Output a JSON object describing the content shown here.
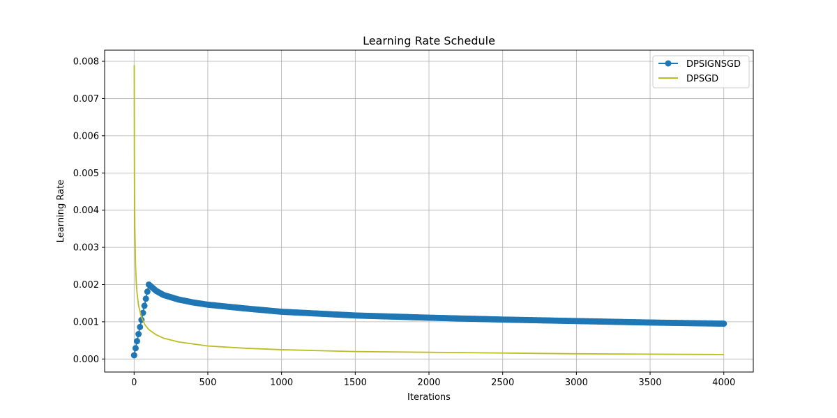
{
  "chart_data": {
    "type": "line",
    "title": "Learning Rate Schedule",
    "xlabel": "Iterations",
    "ylabel": "Learning Rate",
    "xlim": [
      -200,
      4200
    ],
    "ylim": [
      -0.00035,
      0.0083
    ],
    "x_ticks": [
      0,
      500,
      1000,
      1500,
      2000,
      2500,
      3000,
      3500,
      4000
    ],
    "x_tick_labels": [
      "0",
      "500",
      "1000",
      "1500",
      "2000",
      "2500",
      "3000",
      "3500",
      "4000"
    ],
    "y_ticks": [
      0,
      0.001,
      0.002,
      0.003,
      0.004,
      0.005,
      0.006,
      0.007,
      0.008
    ],
    "y_tick_labels": [
      "0.000",
      "0.001",
      "0.002",
      "0.003",
      "0.004",
      "0.005",
      "0.006",
      "0.007",
      "0.008"
    ],
    "grid": true,
    "legend_position": "top-right",
    "series": [
      {
        "name": "DPSIGNSGD",
        "color": "#1f77b4",
        "marker": "circle",
        "x": [
          0,
          10,
          20,
          30,
          40,
          50,
          60,
          70,
          80,
          90,
          100,
          150,
          200,
          300,
          400,
          500,
          750,
          1000,
          1500,
          2000,
          2500,
          3000,
          3500,
          4000
        ],
        "y": [
          0.0001,
          0.00029,
          0.00048,
          0.00067,
          0.00086,
          0.00105,
          0.00124,
          0.00143,
          0.00162,
          0.00181,
          0.002,
          0.00183,
          0.00172,
          0.0016,
          0.00152,
          0.00146,
          0.00136,
          0.00127,
          0.00117,
          0.00111,
          0.00106,
          0.00102,
          0.00098,
          0.00095
        ]
      },
      {
        "name": "DPSGD",
        "color": "#bcbd22",
        "x": [
          1,
          2,
          3,
          5,
          10,
          15,
          20,
          30,
          50,
          75,
          100,
          150,
          200,
          300,
          500,
          750,
          1000,
          1500,
          2000,
          2500,
          3000,
          3500,
          4000
        ],
        "y": [
          0.0079,
          0.0056,
          0.00456,
          0.00353,
          0.0025,
          0.00204,
          0.00177,
          0.00144,
          0.00112,
          0.00091,
          0.00079,
          0.00065,
          0.00056,
          0.00046,
          0.00035,
          0.00029,
          0.00025,
          0.0002,
          0.00018,
          0.00016,
          0.00014,
          0.00013,
          0.00012
        ]
      }
    ]
  }
}
